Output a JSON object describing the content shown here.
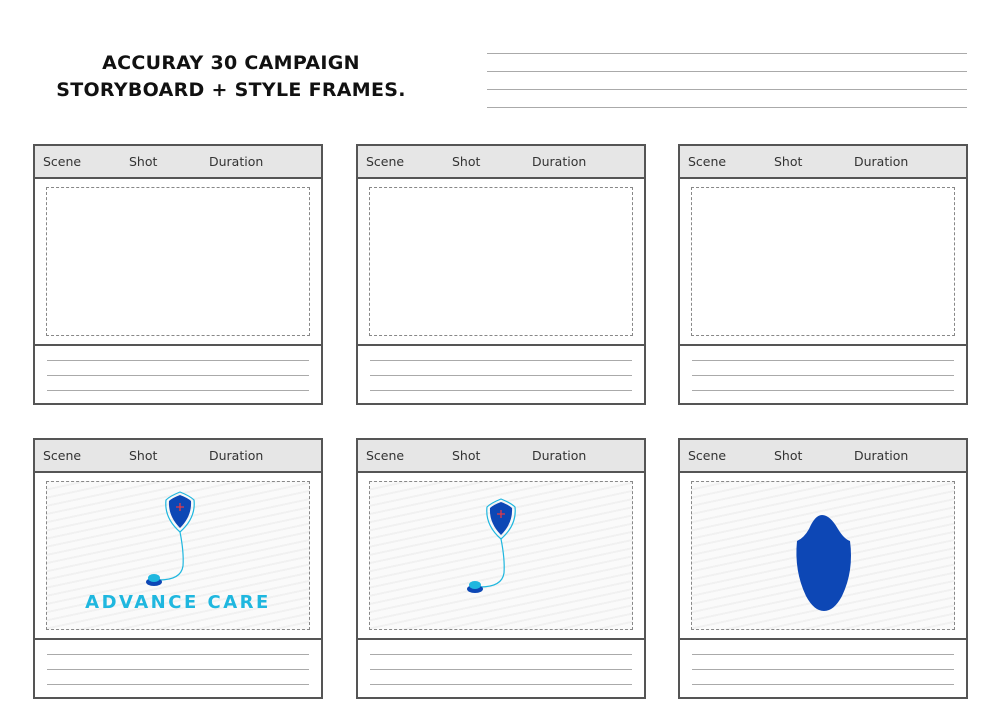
{
  "header": {
    "title_line1": "ACCURAY 30 CAMPAIGN",
    "title_line2": "STORYBOARD + STYLE FRAMES."
  },
  "labels": {
    "scene": "Scene",
    "shot": "Shot",
    "duration": "Duration"
  },
  "panels": [
    {
      "content": "empty"
    },
    {
      "content": "empty"
    },
    {
      "content": "empty"
    },
    {
      "content": "logo",
      "caption": "ADVANCE CARE"
    },
    {
      "content": "logo-no-text"
    },
    {
      "content": "shield-shape"
    }
  ],
  "colors": {
    "shield": "#0d47b5",
    "accent": "#1fb7df",
    "cross": "#e53946"
  }
}
